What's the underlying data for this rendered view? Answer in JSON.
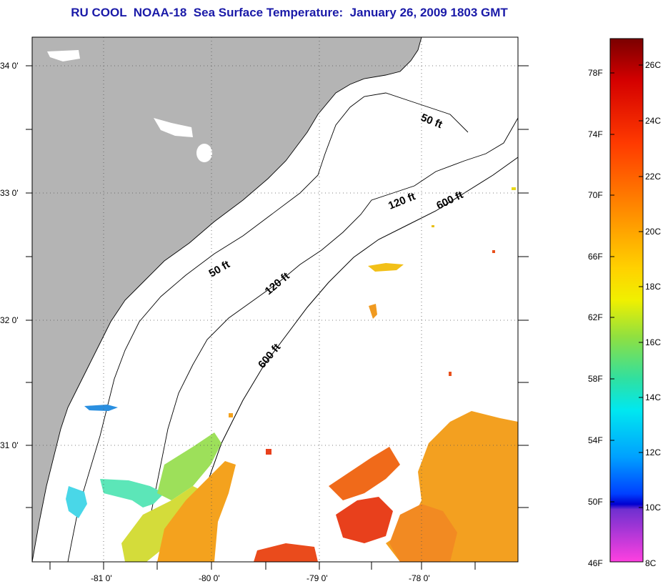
{
  "title": "RU COOL  NOAA-18  Sea Surface Temperature:  January 26, 2009 1803 GMT",
  "map": {
    "lat_labels": [
      "34 0'",
      "33 0'",
      "32 0'",
      "31 0'"
    ],
    "lon_labels": [
      "-81 0'",
      "-80 0'",
      "-79 0'",
      "-78 0'"
    ],
    "isobath_labels": [
      "50 ft",
      "120 ft",
      "600 ft",
      "50 ft",
      "120 ft",
      "600 ft"
    ],
    "colors": {
      "land": "#b4b4b4",
      "ocean": "#ffffff",
      "grid": "#555555"
    }
  },
  "colorbar": {
    "fahrenheit_labels": [
      "78F",
      "74F",
      "70F",
      "66F",
      "62F",
      "58F",
      "54F",
      "50F",
      "46F"
    ],
    "celsius_labels": [
      "26C",
      "24C",
      "22C",
      "20C",
      "18C",
      "16C",
      "14C",
      "12C",
      "10C",
      "8C"
    ]
  }
}
